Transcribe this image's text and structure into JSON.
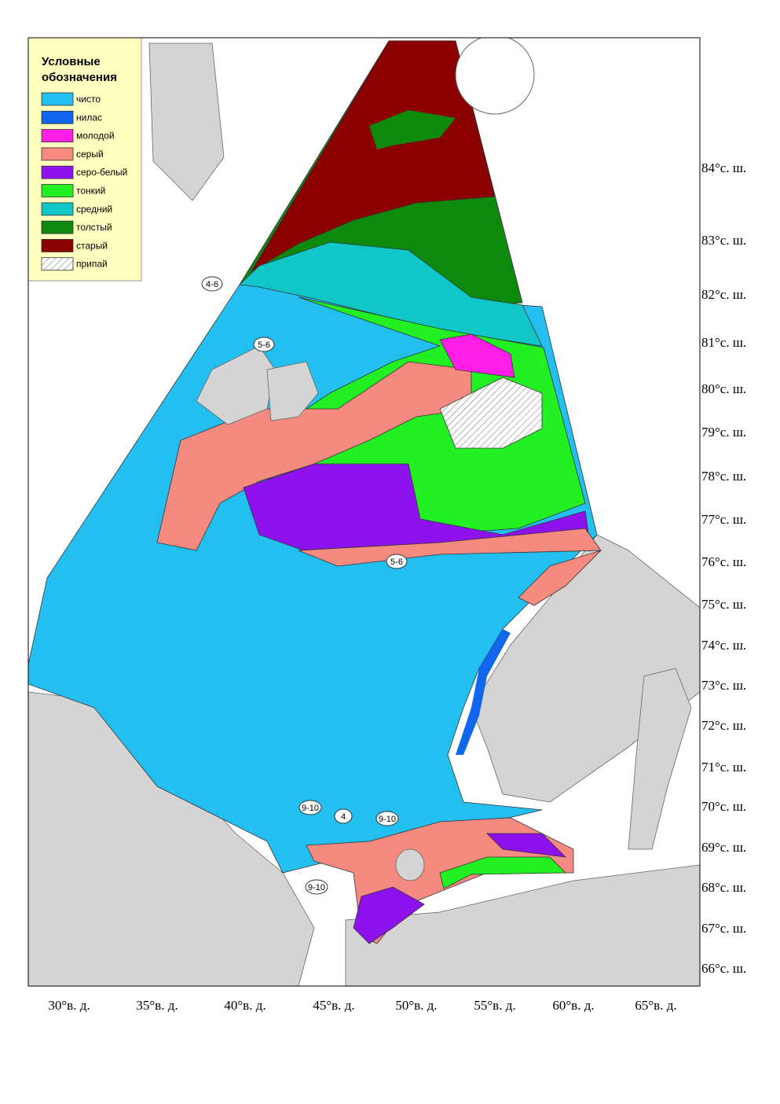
{
  "legend": {
    "title_lines": [
      "Условные",
      "обозначения"
    ],
    "items": [
      {
        "label": "чисто",
        "color": "#22bff0"
      },
      {
        "label": "нилас",
        "color": "#1166ee"
      },
      {
        "label": "молодой",
        "color": "#ff1ee6"
      },
      {
        "label": "серый",
        "color": "#f48a80"
      },
      {
        "label": "серо-белый",
        "color": "#8e12ee"
      },
      {
        "label": "тонкий",
        "color": "#22f022"
      },
      {
        "label": "средний",
        "color": "#11c6c6"
      },
      {
        "label": "толстый",
        "color": "#0d8a0d"
      },
      {
        "label": "старый",
        "color": "#8b0000"
      },
      {
        "label": "припай",
        "color": "#ffffff",
        "hatch": true
      }
    ]
  },
  "lat_labels": [
    "84°с. ш.",
    "83°с. ш.",
    "82°с. ш.",
    "81°с. ш.",
    "80°с. ш.",
    "79°с. ш.",
    "78°с. ш.",
    "77°с. ш.",
    "76°с. ш.",
    "75°с. ш.",
    "74°с. ш.",
    "73°с. ш.",
    "72°с. ш.",
    "71°с. ш.",
    "70°с. ш.",
    "69°с. ш.",
    "68°с. ш.",
    "67°с. ш.",
    "66°с. ш."
  ],
  "lon_labels": [
    "30°в. д.",
    "35°в. д.",
    "40°в. д.",
    "45°в. д.",
    "50°в. д.",
    "55°в. д.",
    "60°в. д.",
    "65°в. д."
  ],
  "stage_labels": [
    "4-6",
    "5-6",
    "5-6",
    "9-10",
    "4",
    "9-10",
    "9-10"
  ]
}
